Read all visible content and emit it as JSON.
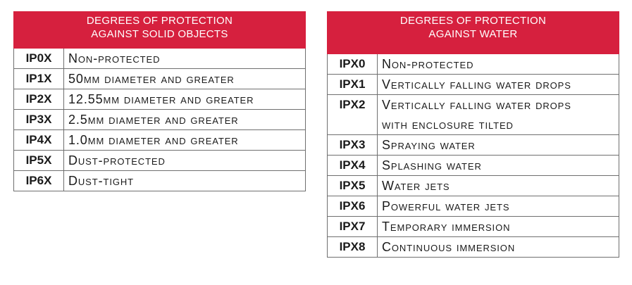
{
  "solid_table": {
    "title_line1": "DEGREES OF PROTECTION",
    "title_line2": "AGAINST SOLID OBJECTS",
    "rows": [
      {
        "code": "IP0X",
        "desc": "Non-protected"
      },
      {
        "code": "IP1X",
        "desc": "50mm diameter and greater"
      },
      {
        "code": "IP2X",
        "desc": "12.55mm diameter and greater"
      },
      {
        "code": "IP3X",
        "desc": "2.5mm diameter and greater"
      },
      {
        "code": "IP4X",
        "desc": "1.0mm diameter and greater"
      },
      {
        "code": "IP5X",
        "desc": "Dust-protected"
      },
      {
        "code": "IP6X",
        "desc": "Dust-tight"
      }
    ]
  },
  "water_table": {
    "title_line1": "DEGREES OF PROTECTION",
    "title_line2": "AGAINST WATER",
    "rows": [
      {
        "code": "IPX0",
        "desc": "Non-protected"
      },
      {
        "code": "IPX1",
        "desc": "Vertically falling water drops"
      },
      {
        "code": "IPX2",
        "desc": "Vertically falling water drops",
        "desc2": "with enclosure tilted"
      },
      {
        "code": "IPX3",
        "desc": "Spraying water"
      },
      {
        "code": "IPX4",
        "desc": "Splashing water"
      },
      {
        "code": "IPX5",
        "desc": "Water jets"
      },
      {
        "code": "IPX6",
        "desc": "Powerful water jets"
      },
      {
        "code": "IPX7",
        "desc": "Temporary immersion"
      },
      {
        "code": "IPX8",
        "desc": "Continuous immersion"
      }
    ]
  },
  "colors": {
    "header_bg": "#d6203e",
    "header_text": "#ffffff",
    "border": "#6f6f6f"
  }
}
